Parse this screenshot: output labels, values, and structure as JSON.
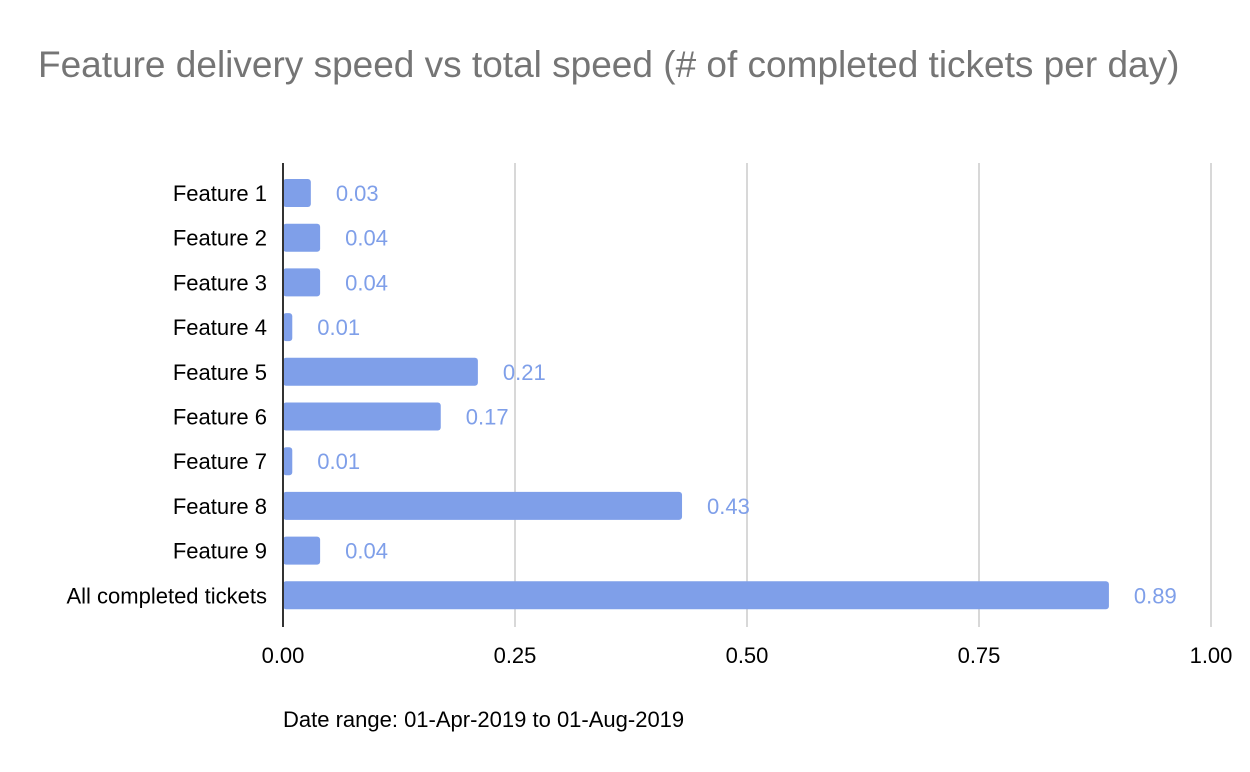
{
  "chart_data": {
    "type": "bar",
    "orientation": "horizontal",
    "title": "Feature delivery speed vs total speed (# of completed tickets per day)",
    "categories": [
      "Feature 1",
      "Feature 2",
      "Feature 3",
      "Feature 4",
      "Feature 5",
      "Feature 6",
      "Feature 7",
      "Feature 8",
      "Feature 9",
      "All completed tickets"
    ],
    "values": [
      0.03,
      0.04,
      0.04,
      0.01,
      0.21,
      0.17,
      0.01,
      0.43,
      0.04,
      0.89
    ],
    "data_labels": [
      "0.03",
      "0.04",
      "0.04",
      "0.01",
      "0.21",
      "0.17",
      "0.01",
      "0.43",
      "0.04",
      "0.89"
    ],
    "x_ticks": [
      "0.00",
      "0.25",
      "0.50",
      "0.75",
      "1.00"
    ],
    "xlim": [
      0,
      1
    ],
    "xlabel": "",
    "ylabel": "",
    "grid": true,
    "legend": "none",
    "bar_color": "#7f9fe9",
    "label_color": "#7f9fe9"
  },
  "footnote": "Date range: 01-Apr-2019 to 01-Aug-2019"
}
